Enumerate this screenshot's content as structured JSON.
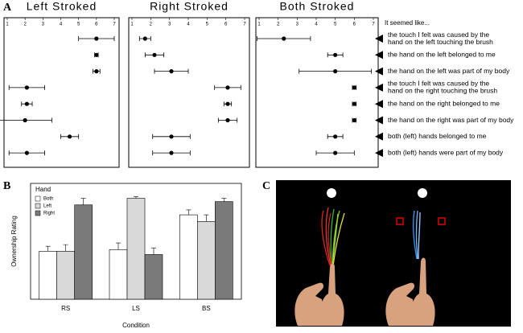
{
  "panel_labels": [
    "A",
    "B",
    "C"
  ],
  "row_header": "It seemed like...",
  "statements": [
    [
      "the touch I felt was caused by the",
      "hand on the left touching the brush"
    ],
    [
      "the hand on the left belonged to me"
    ],
    [
      "the hand on the left was part of my body"
    ],
    [
      "the touch I felt was caused by the",
      "hand on the right touching the brush"
    ],
    [
      "the hand on the right belonged to me"
    ],
    [
      "the hand on the right was part of my body"
    ],
    [
      "both (left) hands belonged to me"
    ],
    [
      "both (left) hands were part of my body"
    ]
  ],
  "chart_data": [
    {
      "type": "dot",
      "title": "Left Stroked",
      "xlim": [
        1,
        7
      ],
      "xticks": [
        1,
        2,
        3,
        4,
        5,
        6,
        7
      ],
      "color": "#000000",
      "values": [
        6.0,
        6.0,
        6.0,
        2.1,
        2.1,
        2.0,
        4.5,
        2.1
      ],
      "errors": [
        1.0,
        0.1,
        0.2,
        1.0,
        0.3,
        1.5,
        0.5,
        1.0
      ]
    },
    {
      "type": "dot",
      "title": "Right Stroked",
      "xlim": [
        1,
        7
      ],
      "xticks": [
        1,
        2,
        3,
        4,
        5,
        6,
        7
      ],
      "color": "#000000",
      "values": [
        1.7,
        2.2,
        3.1,
        6.1,
        6.1,
        6.1,
        3.1,
        3.1
      ],
      "errors": [
        0.3,
        0.5,
        0.9,
        0.7,
        0.2,
        0.5,
        1.0,
        1.0
      ]
    },
    {
      "type": "dot",
      "title": "Both Stroked",
      "xlim": [
        1,
        7
      ],
      "xticks": [
        1,
        2,
        3,
        4,
        5,
        6,
        7
      ],
      "color": "#000000",
      "values": [
        2.3,
        5.0,
        5.0,
        6.0,
        6.0,
        6.0,
        5.0,
        5.0
      ],
      "errors": [
        1.4,
        0.4,
        1.9,
        0.1,
        0.1,
        0.1,
        0.4,
        1.0
      ]
    },
    {
      "type": "bar",
      "y_label": "Ownership Rating",
      "x_label": "Condition",
      "legend_title": "Hand",
      "legend": "upper left",
      "ylim": [
        0,
        7
      ],
      "categories": [
        "RS",
        "LS",
        "BS"
      ],
      "series": [
        {
          "name": "Both",
          "color": "#ffffff",
          "values": [
            2.9,
            3.0,
            5.1
          ],
          "errors": [
            0.3,
            0.4,
            0.3
          ]
        },
        {
          "name": "Left",
          "color": "#d9d9d9",
          "values": [
            2.9,
            6.1,
            4.7
          ],
          "errors": [
            0.4,
            0.1,
            0.4
          ]
        },
        {
          "name": "Right",
          "color": "#7a7a7a",
          "values": [
            5.7,
            2.7,
            5.9
          ],
          "errors": [
            0.4,
            0.4,
            0.2
          ]
        }
      ]
    }
  ]
}
